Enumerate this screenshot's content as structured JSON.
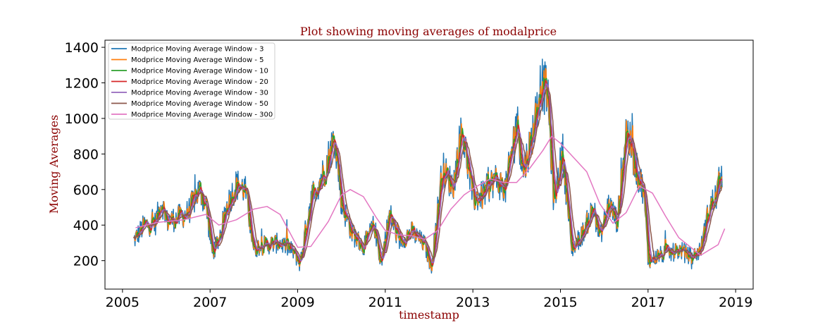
{
  "chart_data": {
    "type": "line",
    "title": "Plot showing moving averages of modalprice",
    "xlabel": "timestamp",
    "ylabel": "Moving Averages",
    "xlim": [
      2004.6,
      2019.4
    ],
    "ylim": [
      40,
      1440
    ],
    "xticks": [
      2005,
      2007,
      2009,
      2011,
      2013,
      2015,
      2017,
      2019
    ],
    "yticks": [
      200,
      400,
      600,
      800,
      1000,
      1200,
      1400
    ],
    "grid": false,
    "legend_position": "top-left",
    "series": [
      {
        "name": "Modprice Moving Average Window - 3",
        "color": "#1f77b4",
        "window": 3
      },
      {
        "name": "Modprice Moving Average Window - 5",
        "color": "#ff7f0e",
        "window": 5
      },
      {
        "name": "Modprice Moving Average Window - 10",
        "color": "#2ca02c",
        "window": 10
      },
      {
        "name": "Modprice Moving Average Window - 20",
        "color": "#d62728",
        "window": 20
      },
      {
        "name": "Modprice Moving Average Window - 30",
        "color": "#9467bd",
        "window": 30
      },
      {
        "name": "Modprice Moving Average Window - 50",
        "color": "#8c564b",
        "window": 50
      },
      {
        "name": "Modprice Moving Average Window - 300",
        "color": "#e377c2",
        "window": 300
      }
    ],
    "x": [
      2005.25,
      2005.5,
      2005.75,
      2005.9,
      2006.0,
      2006.25,
      2006.5,
      2006.75,
      2006.9,
      2007.05,
      2007.2,
      2007.4,
      2007.6,
      2007.8,
      2008.0,
      2008.1,
      2008.3,
      2008.6,
      2008.9,
      2009.05,
      2009.3,
      2009.6,
      2009.85,
      2010.0,
      2010.25,
      2010.5,
      2010.75,
      2010.9,
      2011.1,
      2011.3,
      2011.6,
      2011.9,
      2012.05,
      2012.3,
      2012.55,
      2012.75,
      2013.0,
      2013.2,
      2013.5,
      2013.75,
      2014.0,
      2014.15,
      2014.35,
      2014.55,
      2014.7,
      2014.85,
      2015.05,
      2015.25,
      2015.5,
      2015.75,
      2015.9,
      2016.1,
      2016.3,
      2016.5,
      2016.75,
      2016.9,
      2017.0,
      2017.25,
      2017.5,
      2017.75,
      2018.0,
      2018.2,
      2018.4,
      2018.55,
      2018.7
    ],
    "base_values": [
      310,
      400,
      410,
      540,
      420,
      440,
      470,
      600,
      520,
      240,
      320,
      520,
      630,
      600,
      260,
      280,
      290,
      300,
      250,
      180,
      550,
      700,
      900,
      520,
      350,
      280,
      400,
      180,
      470,
      310,
      360,
      290,
      160,
      720,
      620,
      950,
      550,
      560,
      660,
      600,
      1000,
      700,
      900,
      1200,
      1150,
      520,
      820,
      260,
      350,
      500,
      330,
      520,
      420,
      950,
      700,
      600,
      200,
      230,
      240,
      260,
      220,
      260,
      500,
      560,
      720
    ],
    "trend_300": [
      [
        2005.3,
        385
      ],
      [
        2005.8,
        415
      ],
      [
        2006.4,
        430
      ],
      [
        2006.9,
        460
      ],
      [
        2007.2,
        400
      ],
      [
        2007.6,
        430
      ],
      [
        2008.0,
        490
      ],
      [
        2008.3,
        505
      ],
      [
        2008.6,
        460
      ],
      [
        2009.0,
        275
      ],
      [
        2009.3,
        280
      ],
      [
        2009.7,
        420
      ],
      [
        2010.0,
        570
      ],
      [
        2010.2,
        600
      ],
      [
        2010.5,
        560
      ],
      [
        2010.8,
        440
      ],
      [
        2011.0,
        370
      ],
      [
        2011.3,
        345
      ],
      [
        2011.6,
        340
      ],
      [
        2011.9,
        320
      ],
      [
        2012.2,
        370
      ],
      [
        2012.5,
        490
      ],
      [
        2012.8,
        570
      ],
      [
        2013.1,
        620
      ],
      [
        2013.4,
        660
      ],
      [
        2013.7,
        640
      ],
      [
        2014.0,
        640
      ],
      [
        2014.3,
        720
      ],
      [
        2014.6,
        820
      ],
      [
        2014.8,
        900
      ],
      [
        2015.0,
        860
      ],
      [
        2015.3,
        780
      ],
      [
        2015.6,
        700
      ],
      [
        2015.9,
        520
      ],
      [
        2016.2,
        410
      ],
      [
        2016.5,
        470
      ],
      [
        2016.8,
        620
      ],
      [
        2017.1,
        580
      ],
      [
        2017.4,
        450
      ],
      [
        2017.7,
        330
      ],
      [
        2018.0,
        270
      ],
      [
        2018.2,
        230
      ],
      [
        2018.4,
        260
      ],
      [
        2018.6,
        290
      ],
      [
        2018.75,
        380
      ]
    ]
  }
}
